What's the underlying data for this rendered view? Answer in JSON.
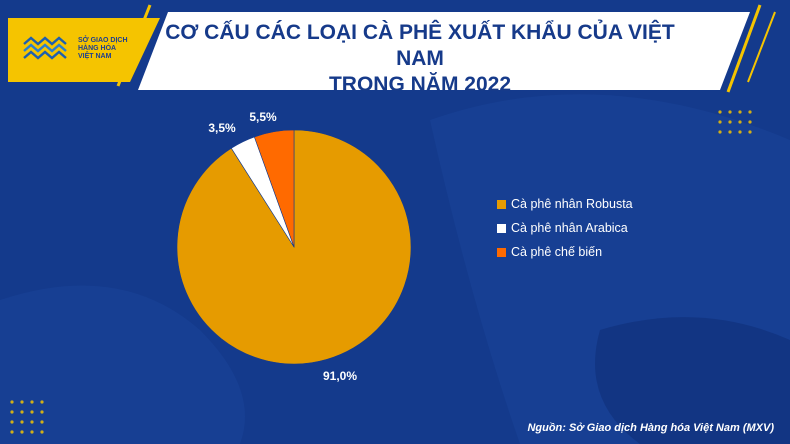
{
  "header": {
    "logo_lines": [
      "SỞ GIAO DỊCH",
      "HÀNG HÓA",
      "VIỆT NAM"
    ],
    "title_line1": "CƠ CẤU CÁC LOẠI CÀ PHÊ XUẤT KHẨU CỦA VIỆT NAM",
    "title_line2": "TRONG NĂM 2022"
  },
  "chart_data": {
    "type": "pie",
    "title": "CƠ CẤU CÁC LOẠI CÀ PHÊ XUẤT KHẨU CỦA VIỆT NAM TRONG NĂM 2022",
    "slices": [
      {
        "name": "Cà phê nhân Robusta",
        "value": 91.0,
        "label": "91,0%",
        "color": "#e69b00"
      },
      {
        "name": "Cà phê nhân Arabica",
        "value": 3.5,
        "label": "3,5%",
        "color": "#ffffff"
      },
      {
        "name": "Cà phê chế biến",
        "value": 5.5,
        "label": "5,5%",
        "color": "#ff6a00"
      }
    ],
    "legend_position": "right"
  },
  "footer": {
    "source": "Nguồn: Sở Giao dịch Hàng hóa Việt Nam (MXV)"
  },
  "colors": {
    "background": "#143a8c",
    "accent": "#f5c400"
  }
}
